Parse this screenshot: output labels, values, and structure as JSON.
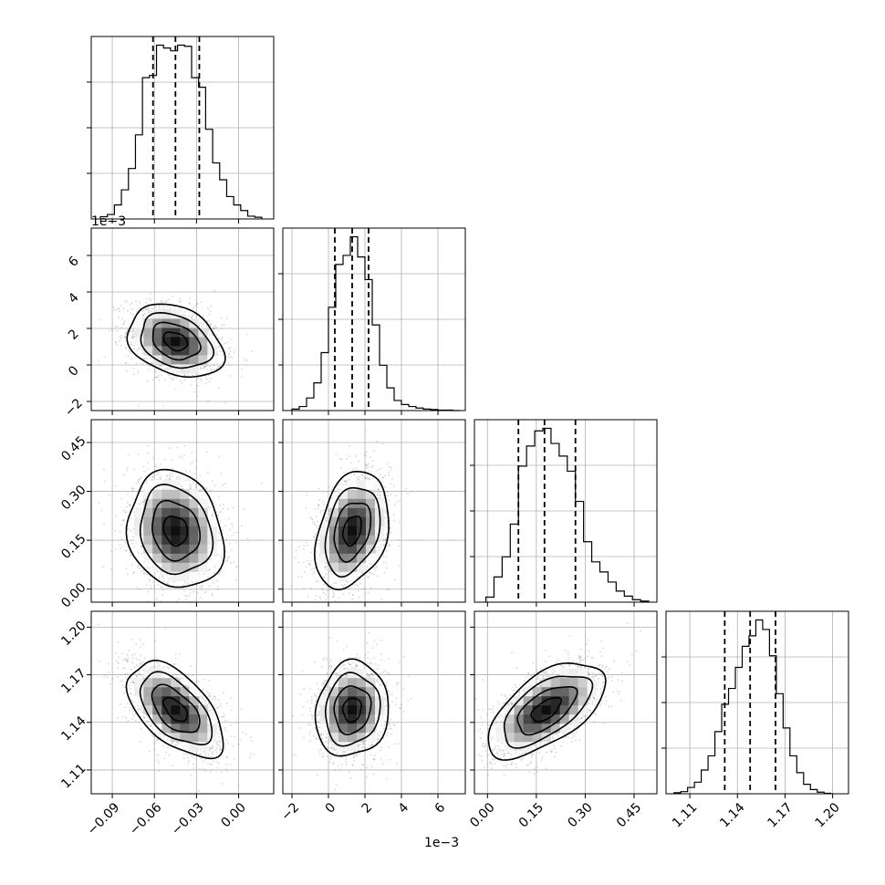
{
  "chart_data": {
    "type": "corner",
    "parameters": [
      {
        "range": [
          -0.105,
          0.025
        ],
        "ticks": [
          -0.09,
          -0.06,
          -0.03,
          0.0
        ],
        "tick_labels": [
          "−0.09",
          "−0.06",
          "−0.03",
          "0.00"
        ],
        "quantiles": [
          -0.061,
          -0.045,
          -0.028
        ],
        "hist_edges": [
          -0.0985,
          -0.0935,
          -0.0885,
          -0.0835,
          -0.0785,
          -0.0735,
          -0.0685,
          -0.0635,
          -0.0585,
          -0.0535,
          -0.0485,
          -0.0435,
          -0.0385,
          -0.0335,
          -0.0285,
          -0.0235,
          -0.0185,
          -0.0135,
          -0.0085,
          -0.0035,
          0.0015,
          0.0065,
          0.0115,
          0.0165
        ],
        "hist_counts": [
          4,
          8,
          25,
          52,
          90,
          150,
          252,
          256,
          310,
          305,
          300,
          310,
          308,
          252,
          235,
          160,
          100,
          70,
          40,
          25,
          15,
          5,
          3
        ]
      },
      {
        "range": [
          -2.5,
          7.5
        ],
        "ticks": [
          -2,
          0,
          2,
          4,
          6
        ],
        "tick_labels": [
          "−2",
          "0",
          "2",
          "4",
          "6"
        ],
        "offset_label": "1e−3",
        "quantiles": [
          0.35,
          1.3,
          2.2
        ],
        "hist_edges": [
          -2.0,
          -1.6,
          -1.2,
          -0.8,
          -0.4,
          0.0,
          0.4,
          0.8,
          1.2,
          1.6,
          2.0,
          2.4,
          2.8,
          3.2,
          3.6,
          4.0,
          4.4,
          4.8,
          5.2,
          5.6,
          6.0,
          6.4,
          6.8,
          7.2
        ],
        "hist_counts": [
          3,
          8,
          25,
          55,
          115,
          205,
          290,
          308,
          345,
          305,
          260,
          170,
          90,
          45,
          20,
          12,
          8,
          5,
          3,
          2,
          1,
          1,
          0
        ]
      },
      {
        "range": [
          -0.04,
          0.52
        ],
        "ticks": [
          0.0,
          0.15,
          0.3,
          0.45
        ],
        "tick_labels": [
          "0.00",
          "0.15",
          "0.30",
          "0.45"
        ],
        "quantiles": [
          0.095,
          0.175,
          0.27
        ],
        "hist_edges": [
          -0.005,
          0.02,
          0.045,
          0.07,
          0.095,
          0.12,
          0.145,
          0.17,
          0.195,
          0.22,
          0.245,
          0.27,
          0.295,
          0.32,
          0.345,
          0.37,
          0.395,
          0.42,
          0.445,
          0.47,
          0.495
        ],
        "hist_counts": [
          10,
          50,
          90,
          155,
          270,
          310,
          340,
          345,
          315,
          290,
          260,
          200,
          120,
          80,
          60,
          40,
          22,
          12,
          5,
          2
        ]
      },
      {
        "range": [
          1.095,
          1.21
        ],
        "ticks": [
          1.11,
          1.14,
          1.17,
          1.2
        ],
        "tick_labels": [
          "1.11",
          "1.14",
          "1.17",
          "1.20"
        ],
        "quantiles": [
          1.132,
          1.148,
          1.164
        ],
        "hist_edges": [
          1.1,
          1.1043,
          1.1086,
          1.1129,
          1.1172,
          1.1215,
          1.1258,
          1.1301,
          1.1344,
          1.1387,
          1.143,
          1.1473,
          1.1516,
          1.1559,
          1.1602,
          1.1645,
          1.1688,
          1.1731,
          1.1774,
          1.1817,
          1.186,
          1.1903,
          1.1946,
          1.1989
        ],
        "hist_counts": [
          2,
          4,
          12,
          22,
          45,
          72,
          118,
          170,
          200,
          240,
          280,
          300,
          330,
          312,
          262,
          190,
          125,
          72,
          40,
          18,
          8,
          3,
          1
        ]
      }
    ],
    "offset_label": "1e−3",
    "pairs": [
      {
        "row": 1,
        "col": 0,
        "mean": [
          -0.045,
          1.3
        ],
        "sd": [
          0.017,
          1.0
        ],
        "corr": -0.3
      },
      {
        "row": 2,
        "col": 0,
        "mean": [
          -0.045,
          0.18
        ],
        "sd": [
          0.017,
          0.09
        ],
        "corr": -0.15
      },
      {
        "row": 2,
        "col": 1,
        "mean": [
          1.3,
          0.18
        ],
        "sd": [
          1.0,
          0.09
        ],
        "corr": 0.3
      },
      {
        "row": 3,
        "col": 0,
        "mean": [
          -0.045,
          1.148
        ],
        "sd": [
          0.017,
          0.015
        ],
        "corr": -0.55
      },
      {
        "row": 3,
        "col": 1,
        "mean": [
          1.3,
          1.148
        ],
        "sd": [
          1.0,
          0.015
        ],
        "corr": 0.1
      },
      {
        "row": 3,
        "col": 2,
        "mean": [
          0.18,
          1.148
        ],
        "sd": [
          0.09,
          0.015
        ],
        "corr": 0.6
      }
    ],
    "grid": true
  }
}
